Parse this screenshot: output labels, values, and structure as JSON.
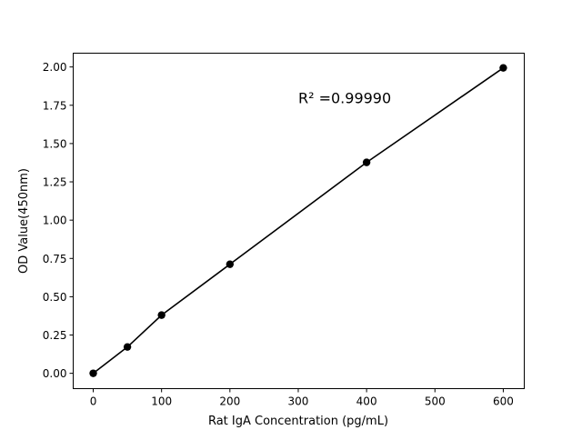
{
  "chart_data": {
    "type": "line",
    "title": "",
    "xlabel": "Rat IgA Concentration (pg/mL)",
    "ylabel": "OD Value(450nm)",
    "x": [
      0,
      50,
      100,
      200,
      400,
      600
    ],
    "series": [
      {
        "values": [
          0.0,
          0.172,
          0.38,
          0.712,
          1.377,
          1.994
        ],
        "color": "#000000",
        "marker": "circle"
      }
    ],
    "xlim": [
      -29.3,
      630.7
    ],
    "ylim": [
      -0.1,
      2.09
    ],
    "xticks": [
      0,
      100,
      200,
      300,
      400,
      500,
      600
    ],
    "xtick_labels": [
      "0",
      "100",
      "200",
      "300",
      "400",
      "500",
      "600"
    ],
    "yticks": [
      0,
      0.25,
      0.5,
      0.75,
      1.0,
      1.25,
      1.5,
      1.75,
      2.0
    ],
    "ytick_labels": [
      "0.00",
      "0.25",
      "0.50",
      "0.75",
      "1.00",
      "1.25",
      "1.50",
      "1.75",
      "2.00"
    ],
    "annotations": [
      {
        "text": "R² =0.99990",
        "x": 300,
        "y": 1.8
      }
    ],
    "grid": false
  }
}
